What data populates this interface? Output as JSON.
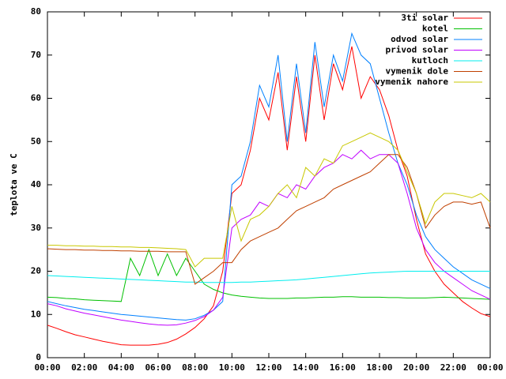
{
  "chart_data": {
    "type": "line",
    "y_label": "teplota ve C",
    "x": [
      0,
      0.5,
      1,
      1.5,
      2,
      2.5,
      3,
      3.5,
      4,
      4.5,
      5,
      5.5,
      6,
      6.5,
      7,
      7.5,
      8,
      8.5,
      9,
      9.5,
      10,
      10.5,
      11,
      11.5,
      12,
      12.5,
      13,
      13.5,
      14,
      14.5,
      15,
      15.5,
      16,
      16.5,
      17,
      17.5,
      18,
      18.5,
      19,
      19.5,
      20,
      20.5,
      21,
      21.5,
      22,
      22.5,
      23,
      23.5,
      24
    ],
    "xlim": [
      0,
      24
    ],
    "xticks": [
      {
        "value": 0,
        "label": "00:00"
      },
      {
        "value": 2,
        "label": "02:00"
      },
      {
        "value": 4,
        "label": "04:00"
      },
      {
        "value": 6,
        "label": "06:00"
      },
      {
        "value": 8,
        "label": "08:00"
      },
      {
        "value": 10,
        "label": "10:00"
      },
      {
        "value": 12,
        "label": "12:00"
      },
      {
        "value": 14,
        "label": "14:00"
      },
      {
        "value": 16,
        "label": "16:00"
      },
      {
        "value": 18,
        "label": "18:00"
      },
      {
        "value": 20,
        "label": "20:00"
      },
      {
        "value": 22,
        "label": "22:00"
      },
      {
        "value": 24,
        "label": "00:00"
      }
    ],
    "ylim": [
      0,
      80
    ],
    "yticks": [
      0,
      10,
      20,
      30,
      40,
      50,
      60,
      70,
      80
    ],
    "grid": false,
    "legend": "top-right",
    "series": [
      {
        "name": "3ti solar",
        "color": "#ff0000",
        "values": [
          7.5,
          6.8,
          6.0,
          5.3,
          4.8,
          4.3,
          3.8,
          3.4,
          3.0,
          2.9,
          2.9,
          2.9,
          3.1,
          3.5,
          4.3,
          5.5,
          7.0,
          9.0,
          12,
          20,
          38,
          40,
          48,
          60,
          55,
          66,
          48,
          65,
          50,
          70,
          55,
          68,
          62,
          72,
          60,
          65,
          62,
          56,
          48,
          42,
          32,
          24,
          20,
          17,
          15,
          13,
          11.5,
          10.2,
          9.5
        ]
      },
      {
        "name": "kotel",
        "color": "#00c000",
        "values": [
          14,
          13.9,
          13.7,
          13.6,
          13.4,
          13.3,
          13.2,
          13.1,
          13,
          23,
          19,
          25,
          19,
          24,
          19,
          23,
          20,
          17,
          15.8,
          15,
          14.5,
          14.2,
          14,
          13.8,
          13.7,
          13.7,
          13.7,
          13.8,
          13.8,
          13.9,
          14,
          14,
          14.1,
          14.1,
          14,
          14,
          14,
          13.9,
          13.9,
          13.8,
          13.8,
          13.8,
          13.9,
          14,
          13.9,
          13.8,
          13.7,
          13.6,
          13.5
        ]
      },
      {
        "name": "odvod solar",
        "color": "#0080ff",
        "values": [
          13,
          12.5,
          12,
          11.6,
          11.2,
          10.9,
          10.6,
          10.3,
          10,
          9.8,
          9.6,
          9.4,
          9.2,
          9,
          8.8,
          8.7,
          9,
          9.8,
          11,
          13,
          40,
          42,
          50,
          63,
          58,
          70,
          50,
          68,
          52,
          73,
          58,
          70,
          64,
          75,
          70,
          68,
          60,
          52,
          45,
          40,
          33,
          28,
          25,
          23,
          21,
          19.5,
          18,
          17,
          16
        ]
      },
      {
        "name": "privod solar",
        "color": "#c000ff",
        "values": [
          12.5,
          12,
          11.3,
          10.8,
          10.3,
          9.9,
          9.5,
          9.1,
          8.7,
          8.4,
          8.1,
          7.8,
          7.6,
          7.5,
          7.6,
          8,
          8.6,
          9.5,
          11,
          14,
          30,
          32,
          33,
          36,
          35,
          38,
          37,
          40,
          39,
          42,
          44,
          45,
          47,
          46,
          48,
          46,
          47,
          47,
          45,
          38,
          30,
          25,
          22,
          20,
          18.5,
          17,
          15.5,
          14.5,
          13.5
        ]
      },
      {
        "name": "kutloch",
        "color": "#00eeee",
        "values": [
          19,
          18.9,
          18.8,
          18.7,
          18.6,
          18.5,
          18.4,
          18.3,
          18.2,
          18.1,
          18,
          17.9,
          17.8,
          17.7,
          17.6,
          17.5,
          17.5,
          17.4,
          17.4,
          17.4,
          17.4,
          17.5,
          17.5,
          17.6,
          17.7,
          17.8,
          17.9,
          18,
          18.2,
          18.4,
          18.6,
          18.8,
          19,
          19.2,
          19.4,
          19.6,
          19.7,
          19.8,
          19.9,
          20,
          20,
          20,
          20,
          20,
          20,
          20,
          20,
          20,
          20
        ]
      },
      {
        "name": "vymenik dole",
        "color": "#c04000",
        "values": [
          25.2,
          25.1,
          25,
          25,
          24.9,
          24.9,
          24.8,
          24.8,
          24.7,
          24.7,
          24.6,
          24.6,
          24.6,
          24.5,
          24.5,
          24.5,
          17,
          18.5,
          20,
          22,
          22,
          25,
          27,
          28,
          29,
          30,
          32,
          34,
          35,
          36,
          37,
          39,
          40,
          41,
          42,
          43,
          45,
          47,
          47,
          44,
          38,
          30,
          33,
          35,
          36,
          36,
          35.5,
          36,
          30
        ]
      },
      {
        "name": "vymenik nahore",
        "color": "#c8c800",
        "values": [
          26,
          26,
          25.9,
          25.9,
          25.8,
          25.8,
          25.7,
          25.7,
          25.6,
          25.6,
          25.5,
          25.5,
          25.4,
          25.3,
          25.2,
          25,
          21,
          23,
          23,
          23,
          35,
          27,
          32,
          33,
          35,
          38,
          40,
          37,
          44,
          42,
          46,
          45,
          49,
          50,
          51,
          52,
          51,
          50,
          48,
          43,
          38,
          31,
          36,
          38,
          38,
          37.5,
          37,
          38,
          36
        ]
      }
    ]
  }
}
